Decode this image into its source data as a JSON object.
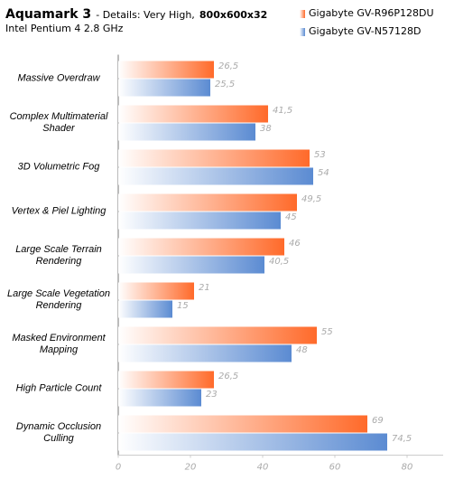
{
  "chart_data": {
    "type": "bar",
    "orientation": "horizontal",
    "title": "Aquamark 3",
    "title_detail": "- Details: Very High,",
    "title_resolution": "800x600x32",
    "subtitle": "Intel Pentium 4 2.8 GHz",
    "categories": [
      "Massive Overdraw",
      "Complex Multimaterial Shader",
      "3D Volumetric Fog",
      "Vertex & Piel Lighting",
      "Large Scale Terrain Rendering",
      "Large Scale Vegetation Rendering",
      "Masked Environment Mapping",
      "High Particle Count",
      "Dynamic Occlusion Culling"
    ],
    "series": [
      {
        "name": "Gigabyte GV-R96P128DU",
        "color": "#ff6a2a",
        "values": [
          26.5,
          41.5,
          53,
          49.5,
          46,
          21,
          55,
          26.5,
          69
        ],
        "value_labels": [
          "26,5",
          "41,5",
          "53",
          "49,5",
          "46",
          "21",
          "55",
          "26,5",
          "69"
        ]
      },
      {
        "name": "Gigabyte GV-N57128D",
        "color": "#5b8bd2",
        "values": [
          25.5,
          38,
          54,
          45,
          40.5,
          15,
          48,
          23,
          74.5
        ],
        "value_labels": [
          "25,5",
          "38",
          "54",
          "45",
          "40,5",
          "15",
          "48",
          "23",
          "74,5"
        ]
      }
    ],
    "xlim": [
      0,
      90
    ],
    "xticks": [
      0,
      20,
      40,
      60,
      80
    ],
    "grid": false
  }
}
